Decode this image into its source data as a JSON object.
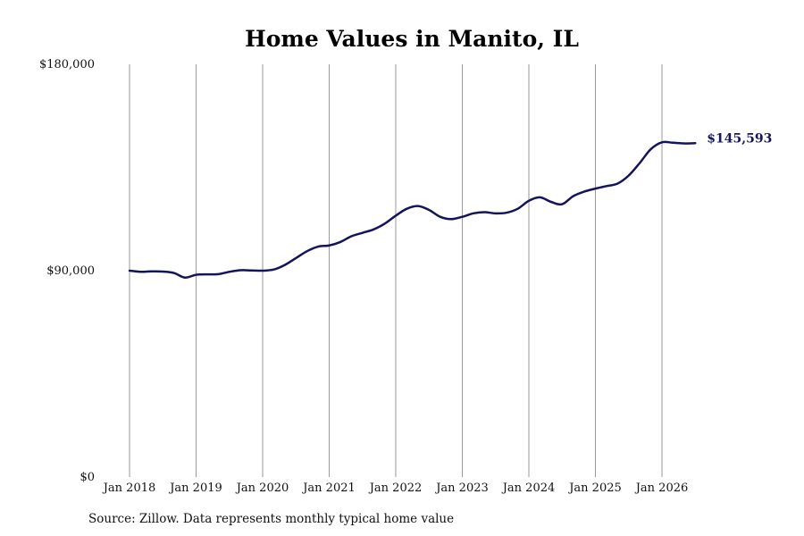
{
  "chart_data": {
    "type": "line",
    "title": "Home Values in Manito, IL",
    "xlabel": "",
    "ylabel": "",
    "ylim": [
      0,
      180000
    ],
    "y_ticks": [
      {
        "value": 0,
        "label": "$0"
      },
      {
        "value": 90000,
        "label": "$90,000"
      },
      {
        "value": 180000,
        "label": "$180,000"
      }
    ],
    "x_ticks": [
      {
        "value": 2018.0,
        "label": "Jan 2018"
      },
      {
        "value": 2019.0,
        "label": "Jan 2019"
      },
      {
        "value": 2020.0,
        "label": "Jan 2020"
      },
      {
        "value": 2021.0,
        "label": "Jan 2021"
      },
      {
        "value": 2022.0,
        "label": "Jan 2022"
      },
      {
        "value": 2023.0,
        "label": "Jan 2023"
      },
      {
        "value": 2024.0,
        "label": "Jan 2024"
      },
      {
        "value": 2025.0,
        "label": "Jan 2025"
      },
      {
        "value": 2026.0,
        "label": "Jan 2026"
      }
    ],
    "xlim": [
      2017.85,
      2026.95
    ],
    "grid": {
      "vertical": true,
      "horizontal": false
    },
    "series": [
      {
        "color": "#14145c",
        "end_label": "$145,593",
        "x": [
          2018.0,
          2018.167,
          2018.333,
          2018.5,
          2018.667,
          2018.833,
          2019.0,
          2019.167,
          2019.333,
          2019.5,
          2019.667,
          2019.833,
          2020.0,
          2020.167,
          2020.333,
          2020.5,
          2020.667,
          2020.833,
          2021.0,
          2021.167,
          2021.333,
          2021.5,
          2021.667,
          2021.833,
          2022.0,
          2022.167,
          2022.333,
          2022.5,
          2022.667,
          2022.833,
          2023.0,
          2023.167,
          2023.333,
          2023.5,
          2023.667,
          2023.833,
          2024.0,
          2024.167,
          2024.333,
          2024.5,
          2024.667,
          2024.833,
          2025.0,
          2025.167,
          2025.333,
          2025.5,
          2025.667,
          2025.833,
          2026.0,
          2026.167,
          2026.333,
          2026.5
        ],
        "values": [
          90000,
          89500,
          89700,
          89600,
          89000,
          87000,
          88200,
          88400,
          88500,
          89500,
          90200,
          90100,
          90000,
          90500,
          92500,
          95500,
          98500,
          100500,
          101000,
          102500,
          105000,
          106500,
          108000,
          110500,
          114000,
          117000,
          118200,
          116500,
          113500,
          112500,
          113500,
          115000,
          115500,
          115000,
          115300,
          117000,
          120500,
          122000,
          120000,
          119000,
          122500,
          124500,
          125800,
          126900,
          128000,
          131500,
          137000,
          143000,
          146000,
          145800,
          145500,
          145593
        ]
      }
    ]
  },
  "source_text": "Source: Zillow. Data represents monthly typical home value"
}
